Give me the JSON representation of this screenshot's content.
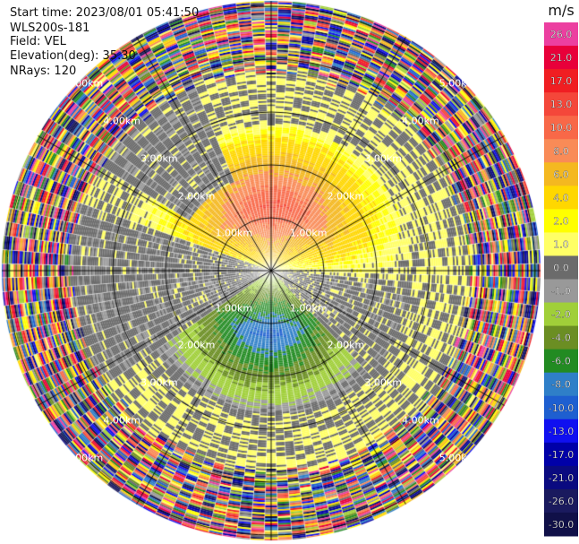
{
  "header": {
    "start_time": "Start time: 2023/08/01 05:41:50",
    "instrument": "WLS200s-181",
    "field": "Field: VEL",
    "elevation": "Elevation(deg): 35.30",
    "nrays": "NRays: 120"
  },
  "colorbar": {
    "unit": "m/s",
    "entries": [
      {
        "label": "26.0",
        "color": "#ec3fa0"
      },
      {
        "label": "21.0",
        "color": "#e8003a"
      },
      {
        "label": "17.0",
        "color": "#f01e22"
      },
      {
        "label": "13.0",
        "color": "#f4473a"
      },
      {
        "label": "10.0",
        "color": "#f86848"
      },
      {
        "label": "8.0",
        "color": "#f98b57"
      },
      {
        "label": "6.0",
        "color": "#f4b820"
      },
      {
        "label": "4.0",
        "color": "#ffd700"
      },
      {
        "label": "2.0",
        "color": "#ffff00"
      },
      {
        "label": "1.0",
        "color": "#ffff66"
      },
      {
        "label": "0.0",
        "color": "#6b6b6b"
      },
      {
        "label": "-1.0",
        "color": "#999999"
      },
      {
        "label": "-2.0",
        "color": "#a0cf39"
      },
      {
        "label": "-4.0",
        "color": "#6b8e23"
      },
      {
        "label": "-6.0",
        "color": "#228b22"
      },
      {
        "label": "-8.0",
        "color": "#2f7fc8"
      },
      {
        "label": "-10.0",
        "color": "#1e5fd0"
      },
      {
        "label": "-13.0",
        "color": "#1010f0"
      },
      {
        "label": "-17.0",
        "color": "#0000a8"
      },
      {
        "label": "-21.0",
        "color": "#0a0a80"
      },
      {
        "label": "-26.0",
        "color": "#1a1a5e"
      },
      {
        "label": "-30.0",
        "color": "#101048"
      }
    ]
  },
  "chart_data": {
    "type": "heatmap",
    "projection": "polar PPI",
    "range_rings_km": [
      1.0,
      2.0,
      3.0,
      4.0,
      5.0
    ],
    "ring_labels": [
      "1.00km",
      "2.00km",
      "3.00km",
      "4.00km",
      "5.00km"
    ],
    "n_rays": 120,
    "elevation_deg": 35.3,
    "field": "VEL",
    "unit": "m/s",
    "max_range_km": 5.1,
    "pattern": {
      "positive_core": {
        "azimuth_deg": 0,
        "range_km": 1.2,
        "value": 9
      },
      "negative_core": {
        "azimuth_deg": 180,
        "range_km": 1.2,
        "value": -9
      },
      "noise_beyond_km": 3.8
    }
  }
}
